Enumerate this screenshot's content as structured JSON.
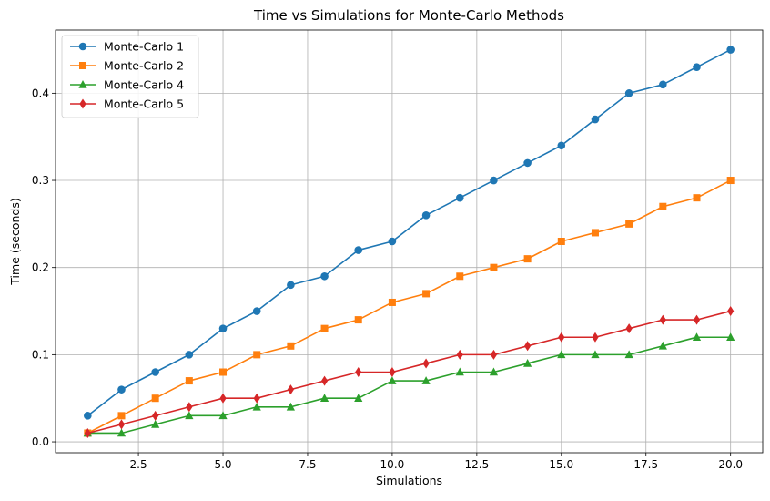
{
  "chart_data": {
    "type": "line",
    "title": "Time vs Simulations for Monte-Carlo Methods",
    "xlabel": "Simulations",
    "ylabel": "Time (seconds)",
    "xlim": [
      0.05,
      20.95
    ],
    "ylim": [
      -0.0125,
      0.4725
    ],
    "x_ticks": [
      2.5,
      5.0,
      7.5,
      10.0,
      12.5,
      15.0,
      17.5,
      20.0
    ],
    "x_tick_labels": [
      "2.5",
      "5.0",
      "7.5",
      "10.0",
      "12.5",
      "15.0",
      "17.5",
      "20.0"
    ],
    "y_ticks": [
      0.0,
      0.1,
      0.2,
      0.3,
      0.4
    ],
    "y_tick_labels": [
      "0.0",
      "0.1",
      "0.2",
      "0.3",
      "0.4"
    ],
    "grid": true,
    "legend_position": "top-left",
    "x": [
      1,
      2,
      3,
      4,
      5,
      6,
      7,
      8,
      9,
      10,
      11,
      12,
      13,
      14,
      15,
      16,
      17,
      18,
      19,
      20
    ],
    "series": [
      {
        "name": "Monte-Carlo 1",
        "color": "#1f77b4",
        "marker": "circle",
        "values": [
          0.03,
          0.06,
          0.08,
          0.1,
          0.13,
          0.15,
          0.18,
          0.19,
          0.22,
          0.23,
          0.26,
          0.28,
          0.3,
          0.32,
          0.34,
          0.37,
          0.4,
          0.41,
          0.43,
          0.45
        ]
      },
      {
        "name": "Monte-Carlo 2",
        "color": "#ff7f0e",
        "marker": "square",
        "values": [
          0.01,
          0.03,
          0.05,
          0.07,
          0.08,
          0.1,
          0.11,
          0.13,
          0.14,
          0.16,
          0.17,
          0.19,
          0.2,
          0.21,
          0.23,
          0.24,
          0.25,
          0.27,
          0.28,
          0.3
        ]
      },
      {
        "name": "Monte-Carlo 4",
        "color": "#2ca02c",
        "marker": "triangle",
        "values": [
          0.01,
          0.01,
          0.02,
          0.03,
          0.03,
          0.04,
          0.04,
          0.05,
          0.05,
          0.07,
          0.07,
          0.08,
          0.08,
          0.09,
          0.1,
          0.1,
          0.1,
          0.11,
          0.12,
          0.12
        ]
      },
      {
        "name": "Monte-Carlo 5",
        "color": "#d62728",
        "marker": "diamond",
        "values": [
          0.01,
          0.02,
          0.03,
          0.04,
          0.05,
          0.05,
          0.06,
          0.07,
          0.08,
          0.08,
          0.09,
          0.1,
          0.1,
          0.11,
          0.12,
          0.12,
          0.13,
          0.14,
          0.14,
          0.15
        ]
      }
    ]
  }
}
